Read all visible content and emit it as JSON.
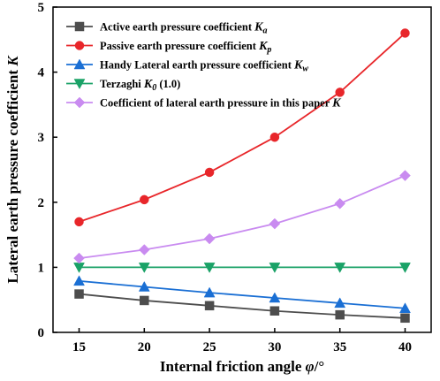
{
  "chart_data": {
    "type": "line",
    "xlabel": "Internal friction angle φ/°",
    "ylabel": "Lateral earth pressure coefficient K",
    "xlim": [
      13,
      42
    ],
    "ylim": [
      0,
      5
    ],
    "xticks": [
      15,
      20,
      25,
      30,
      35,
      40
    ],
    "yticks": [
      0,
      1,
      2,
      3,
      4,
      5
    ],
    "x": [
      15,
      20,
      25,
      30,
      35,
      40
    ],
    "legend_position": "top-left",
    "series": [
      {
        "name": "Active earth pressure coefficient Ka",
        "color": "#4d4d4d",
        "marker": "square",
        "values": [
          0.59,
          0.49,
          0.41,
          0.33,
          0.27,
          0.22
        ]
      },
      {
        "name": "Passive earth pressure coefficient Kp",
        "color": "#e8262a",
        "marker": "circle",
        "values": [
          1.7,
          2.04,
          2.46,
          3.0,
          3.69,
          4.6
        ]
      },
      {
        "name": "Handy Lateral earth pressure coefficient Kw",
        "color": "#1a6fd4",
        "marker": "triangle-up",
        "values": [
          0.79,
          0.7,
          0.61,
          0.53,
          0.45,
          0.37
        ]
      },
      {
        "name": "Terzaghi K0 (1.0)",
        "color": "#1aa267",
        "marker": "triangle-down",
        "values": [
          1.0,
          1.0,
          1.0,
          1.0,
          1.0,
          1.0
        ]
      },
      {
        "name": "Coefficient of lateral earth pressure in this paper K",
        "color": "#c98bf0",
        "marker": "diamond",
        "values": [
          1.14,
          1.27,
          1.44,
          1.67,
          1.98,
          2.41
        ]
      }
    ]
  },
  "legend": [
    {
      "main": "Active earth pressure coefficient ",
      "sym": "K",
      "sub": "a"
    },
    {
      "main": "Passive earth pressure coefficient ",
      "sym": "K",
      "sub": "p"
    },
    {
      "main": "Handy Lateral earth pressure coefficient ",
      "sym": "K",
      "sub": "w"
    },
    {
      "main": "Terzaghi ",
      "sym": "K",
      "sub": "0",
      "post": " (1.0)"
    },
    {
      "main": "Coefficient of lateral earth pressure in this paper ",
      "sym": "K",
      "sub": ""
    }
  ]
}
